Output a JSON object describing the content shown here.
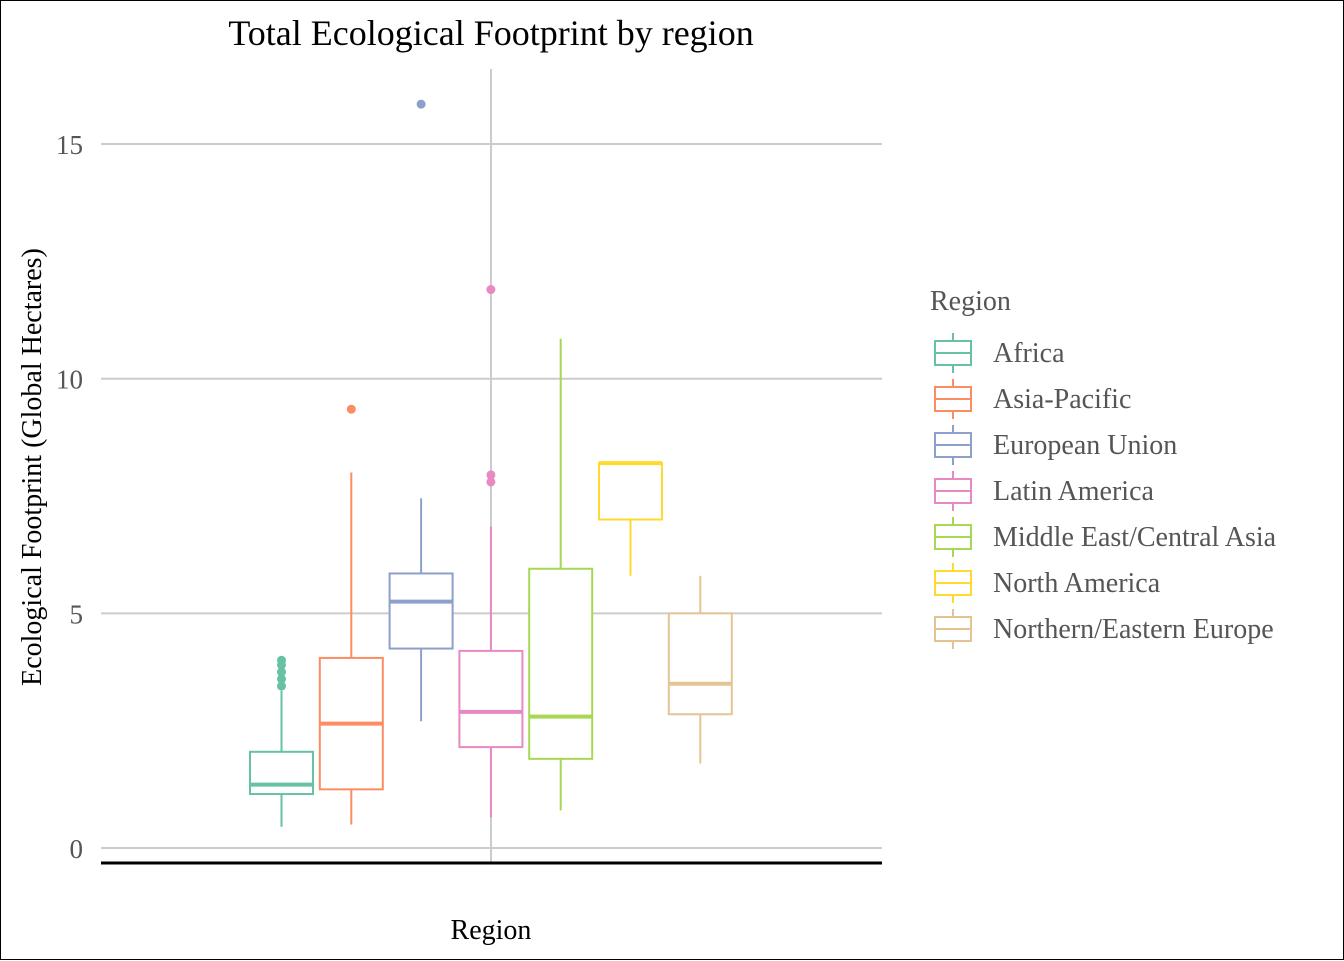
{
  "chart_data": {
    "type": "boxplot",
    "title": "Total Ecological Footprint by region",
    "xlabel": "Region",
    "ylabel": "Ecological Footprint (Global Hectares)",
    "ylim": [
      -0.3,
      16.7
    ],
    "yticks": [
      0,
      5,
      10,
      15
    ],
    "grid": true,
    "legend": {
      "title": "Region",
      "position": "right"
    },
    "series": [
      {
        "name": "Africa",
        "color": "#66C2A5",
        "whisker_low": 0.45,
        "q1": 1.15,
        "median": 1.35,
        "q3": 2.05,
        "whisker_high": 3.35,
        "outliers": [
          3.45,
          3.6,
          3.75,
          3.9,
          4.0
        ]
      },
      {
        "name": "Asia-Pacific",
        "color": "#FC8D62",
        "whisker_low": 0.5,
        "q1": 1.25,
        "median": 2.65,
        "q3": 4.05,
        "whisker_high": 8.0,
        "outliers": [
          9.35
        ]
      },
      {
        "name": "European Union",
        "color": "#8DA0CB",
        "whisker_low": 2.7,
        "q1": 4.25,
        "median": 5.25,
        "q3": 5.85,
        "whisker_high": 7.45,
        "outliers": [
          15.85
        ]
      },
      {
        "name": "Latin America",
        "color": "#E78AC3",
        "whisker_low": 0.65,
        "q1": 2.15,
        "median": 2.9,
        "q3": 4.2,
        "whisker_high": 6.85,
        "outliers": [
          7.8,
          7.95,
          11.9
        ]
      },
      {
        "name": "Middle East/Central Asia",
        "color": "#A6D854",
        "whisker_low": 0.8,
        "q1": 1.9,
        "median": 2.8,
        "q3": 5.95,
        "whisker_high": 10.85,
        "outliers": []
      },
      {
        "name": "North America",
        "color": "#FFD92F",
        "whisker_low": 5.8,
        "q1": 7.0,
        "median": 8.2,
        "q3": 8.2,
        "whisker_high": 8.2,
        "outliers": []
      },
      {
        "name": "Northern/Eastern Europe",
        "color": "#E5C494",
        "whisker_low": 1.8,
        "q1": 2.85,
        "median": 3.5,
        "q3": 5.0,
        "whisker_high": 5.8,
        "outliers": []
      }
    ]
  }
}
